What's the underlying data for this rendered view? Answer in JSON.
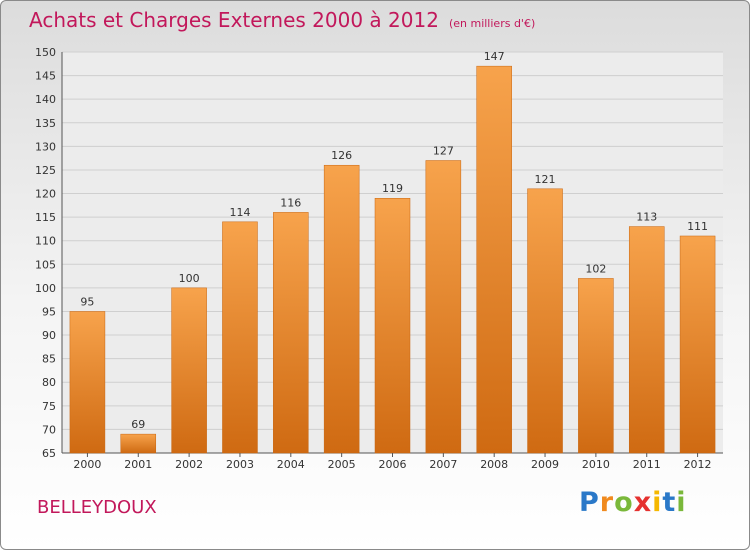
{
  "chart_data": {
    "type": "bar",
    "title": "Achats et Charges Externes 2000 à 2012",
    "unit_note": "(en milliers d'€)",
    "categories": [
      "2000",
      "2001",
      "2002",
      "2003",
      "2004",
      "2005",
      "2006",
      "2007",
      "2008",
      "2009",
      "2010",
      "2011",
      "2012"
    ],
    "values": [
      95,
      69,
      100,
      114,
      116,
      126,
      119,
      127,
      147,
      121,
      102,
      113,
      111
    ],
    "ylim": [
      65,
      150
    ],
    "yticks": [
      65,
      70,
      75,
      80,
      85,
      90,
      95,
      100,
      105,
      110,
      115,
      120,
      125,
      130,
      135,
      140,
      145,
      150
    ],
    "grid": true,
    "bar_color": "#f08a2a",
    "legend": "none"
  },
  "commune": "BELLEYDOUX",
  "brand": {
    "letters": [
      "P",
      "r",
      "o",
      "x",
      "i",
      "t",
      "i"
    ],
    "colors": [
      "#2a78c8",
      "#f08a1e",
      "#7ab83a",
      "#e5312f",
      "#f5b800",
      "#2a78c8",
      "#7ab83a"
    ]
  }
}
